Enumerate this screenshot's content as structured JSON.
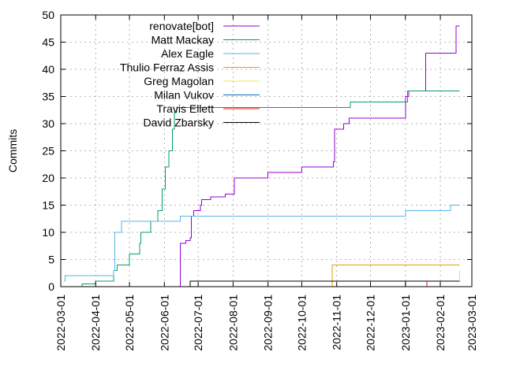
{
  "chart_data": {
    "type": "line",
    "title": "",
    "xlabel": "",
    "ylabel": "Commits",
    "ylim": [
      0,
      50
    ],
    "yticks": [
      0,
      5,
      10,
      15,
      20,
      25,
      30,
      35,
      40,
      45,
      50
    ],
    "xlim": [
      "2022-03-01",
      "2023-03-01"
    ],
    "xticks": [
      "2022-03-01",
      "2022-04-01",
      "2022-05-01",
      "2022-06-01",
      "2022-07-01",
      "2022-08-01",
      "2022-09-01",
      "2022-10-01",
      "2022-11-01",
      "2022-12-01",
      "2023-01-01",
      "2023-02-01",
      "2023-03-01"
    ],
    "grid": true,
    "legend_position": "top-left",
    "series": [
      {
        "name": "renovate[bot]",
        "color": "#9400d3",
        "points": [
          [
            "2022-06-14",
            0
          ],
          [
            "2022-06-15",
            8
          ],
          [
            "2022-06-20",
            8.5
          ],
          [
            "2022-06-24",
            9
          ],
          [
            "2022-06-25",
            13
          ],
          [
            "2022-06-27",
            14
          ],
          [
            "2022-07-03",
            15
          ],
          [
            "2022-07-04",
            16
          ],
          [
            "2022-07-12",
            16.5
          ],
          [
            "2022-07-25",
            17
          ],
          [
            "2022-08-01",
            17
          ],
          [
            "2022-08-02",
            20
          ],
          [
            "2022-09-01",
            21
          ],
          [
            "2022-10-01",
            22
          ],
          [
            "2022-10-29",
            23
          ],
          [
            "2022-10-30",
            29
          ],
          [
            "2022-11-07",
            30
          ],
          [
            "2022-11-12",
            31
          ],
          [
            "2022-12-01",
            31
          ],
          [
            "2022-12-31",
            31
          ],
          [
            "2023-01-01",
            35
          ],
          [
            "2023-01-03",
            35
          ],
          [
            "2023-01-04",
            36
          ],
          [
            "2023-01-18",
            36
          ],
          [
            "2023-01-19",
            43
          ],
          [
            "2023-02-14",
            43
          ],
          [
            "2023-02-15",
            48
          ],
          [
            "2023-02-18",
            48
          ]
        ]
      },
      {
        "name": "Matt Mackay",
        "color": "#009e73",
        "points": [
          [
            "2022-03-05",
            0
          ],
          [
            "2022-03-20",
            0.5
          ],
          [
            "2022-04-01",
            1
          ],
          [
            "2022-04-16",
            1
          ],
          [
            "2022-04-17",
            3
          ],
          [
            "2022-04-20",
            4
          ],
          [
            "2022-05-01",
            6
          ],
          [
            "2022-05-10",
            8
          ],
          [
            "2022-05-11",
            10
          ],
          [
            "2022-05-20",
            12
          ],
          [
            "2022-05-26",
            14
          ],
          [
            "2022-05-30",
            18
          ],
          [
            "2022-06-02",
            22
          ],
          [
            "2022-06-05",
            25
          ],
          [
            "2022-06-08",
            29
          ],
          [
            "2022-06-10",
            32
          ],
          [
            "2022-06-12",
            33
          ],
          [
            "2022-11-12",
            33
          ],
          [
            "2022-11-13",
            34
          ],
          [
            "2023-01-01",
            34
          ],
          [
            "2023-01-03",
            36
          ],
          [
            "2023-02-18",
            36
          ]
        ]
      },
      {
        "name": "Alex Eagle",
        "color": "#56b4e9",
        "points": [
          [
            "2022-03-04",
            1
          ],
          [
            "2022-03-05",
            2
          ],
          [
            "2022-04-01",
            2
          ],
          [
            "2022-04-17",
            3
          ],
          [
            "2022-04-18",
            10
          ],
          [
            "2022-04-24",
            12
          ],
          [
            "2022-06-14",
            12
          ],
          [
            "2022-06-15",
            13
          ],
          [
            "2022-11-15",
            13
          ],
          [
            "2023-01-01",
            14
          ],
          [
            "2023-02-05",
            14
          ],
          [
            "2023-02-10",
            15
          ],
          [
            "2023-02-18",
            15
          ]
        ]
      },
      {
        "name": "Thulio Ferraz Assis",
        "color": "#e69f00",
        "points": [
          [
            "2022-10-27",
            0
          ],
          [
            "2022-10-28",
            4
          ],
          [
            "2023-02-18",
            4
          ]
        ]
      },
      {
        "name": "Greg Magolan",
        "color": "#f0e442",
        "points": [
          [
            "2023-01-28",
            0
          ],
          [
            "2023-02-01",
            1
          ],
          [
            "2023-02-18",
            3
          ]
        ]
      },
      {
        "name": "Milan Vukov",
        "color": "#0072b2",
        "points": [
          [
            "2022-12-31",
            0
          ],
          [
            "2023-01-01",
            1
          ],
          [
            "2023-02-18",
            1
          ]
        ]
      },
      {
        "name": "Travis Ellett",
        "color": "#e51e10",
        "points": [
          [
            "2023-01-06",
            0
          ],
          [
            "2023-01-20",
            1
          ],
          [
            "2023-02-08",
            1
          ],
          [
            "2023-02-18",
            1
          ]
        ]
      },
      {
        "name": "David Zbarsky",
        "color": "#000000",
        "points": [
          [
            "2022-06-23",
            0
          ],
          [
            "2022-06-24",
            1
          ],
          [
            "2023-02-18",
            1
          ]
        ]
      }
    ]
  }
}
